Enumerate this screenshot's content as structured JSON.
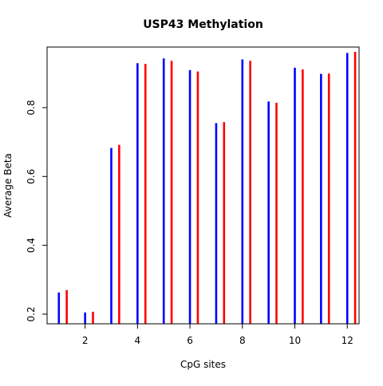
{
  "chart_data": {
    "type": "bar",
    "title": "USP43 Methylation",
    "xlabel": "CpG sites",
    "ylabel": "Average Beta",
    "x_ticks": [
      "2",
      "4",
      "6",
      "8",
      "10",
      "12"
    ],
    "y_ticks": [
      "0.2",
      "0.4",
      "0.6",
      "0.8"
    ],
    "xlim": [
      0.55,
      12.45
    ],
    "ylim": [
      0.172,
      0.976
    ],
    "grid": false,
    "categories": [
      1,
      2,
      3,
      4,
      5,
      6,
      7,
      8,
      9,
      10,
      11,
      12
    ],
    "series": [
      {
        "color": "#0000ff",
        "values": [
          0.263,
          0.205,
          0.683,
          0.929,
          0.943,
          0.909,
          0.755,
          0.94,
          0.818,
          0.916,
          0.898,
          0.959
        ]
      },
      {
        "color": "#ff0000",
        "values": [
          0.27,
          0.207,
          0.692,
          0.927,
          0.936,
          0.905,
          0.758,
          0.936,
          0.814,
          0.911,
          0.899,
          0.962
        ]
      }
    ]
  }
}
